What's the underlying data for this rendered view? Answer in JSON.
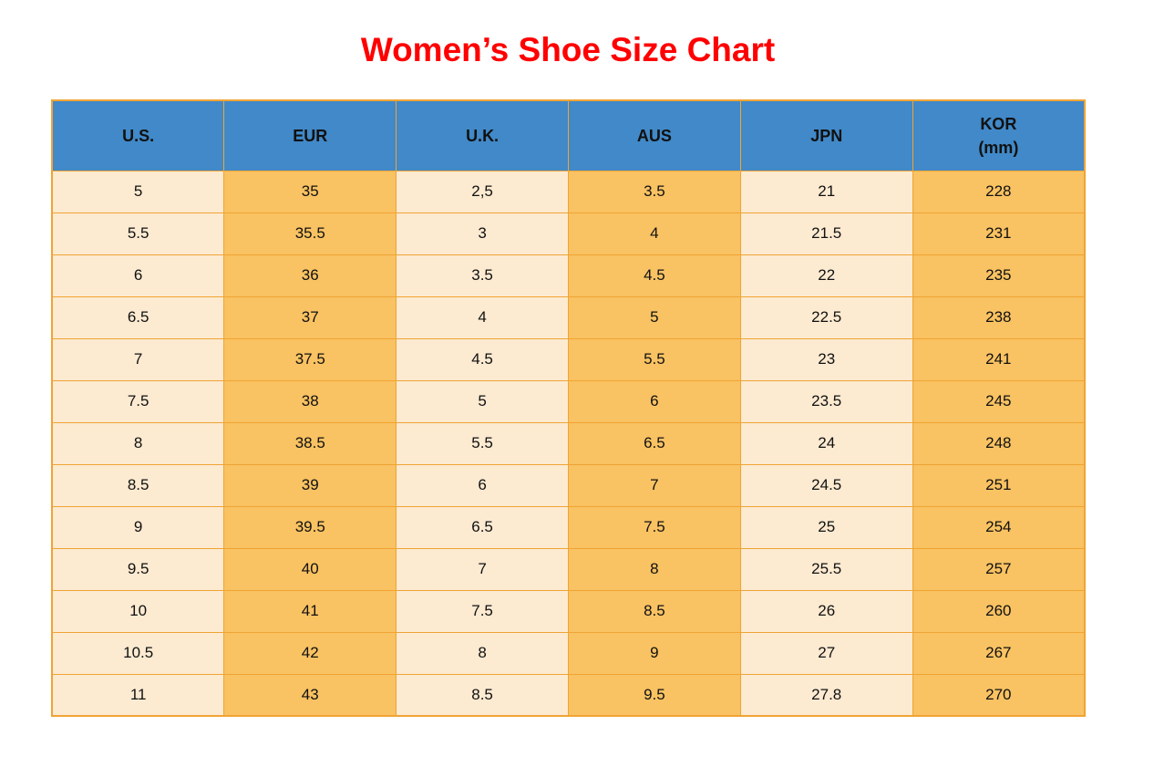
{
  "title": "Women’s Shoe Size Chart",
  "colors": {
    "title_red": "#ff0000",
    "header_blue": "#4189c8",
    "cell_cream": "#fcead1",
    "cell_orange": "#f9c262",
    "border_orange": "#f0a434",
    "text_color": "#111111",
    "page_bg": "#ffffff"
  },
  "chart_data": {
    "type": "table",
    "title": "Women’s Shoe Size Chart",
    "columns": [
      {
        "id": "us",
        "lines": [
          "U.S."
        ]
      },
      {
        "id": "eur",
        "lines": [
          "EUR"
        ]
      },
      {
        "id": "uk",
        "lines": [
          "U.K."
        ]
      },
      {
        "id": "aus",
        "lines": [
          "AUS"
        ]
      },
      {
        "id": "jpn",
        "lines": [
          "JPN"
        ]
      },
      {
        "id": "kor",
        "lines": [
          "KOR",
          "(mm)"
        ]
      }
    ],
    "rows": [
      [
        "5",
        "35",
        "2,5",
        "3.5",
        "21",
        "228"
      ],
      [
        "5.5",
        "35.5",
        "3",
        "4",
        "21.5",
        "231"
      ],
      [
        "6",
        "36",
        "3.5",
        "4.5",
        "22",
        "235"
      ],
      [
        "6.5",
        "37",
        "4",
        "5",
        "22.5",
        "238"
      ],
      [
        "7",
        "37.5",
        "4.5",
        "5.5",
        "23",
        "241"
      ],
      [
        "7.5",
        "38",
        "5",
        "6",
        "23.5",
        "245"
      ],
      [
        "8",
        "38.5",
        "5.5",
        "6.5",
        "24",
        "248"
      ],
      [
        "8.5",
        "39",
        "6",
        "7",
        "24.5",
        "251"
      ],
      [
        "9",
        "39.5",
        "6.5",
        "7.5",
        "25",
        "254"
      ],
      [
        "9.5",
        "40",
        "7",
        "8",
        "25.5",
        "257"
      ],
      [
        "10",
        "41",
        "7.5",
        "8.5",
        "26",
        "260"
      ],
      [
        "10.5",
        "42",
        "8",
        "9",
        "27",
        "267"
      ],
      [
        "11",
        "43",
        "8.5",
        "9.5",
        "27.8",
        "270"
      ]
    ]
  }
}
